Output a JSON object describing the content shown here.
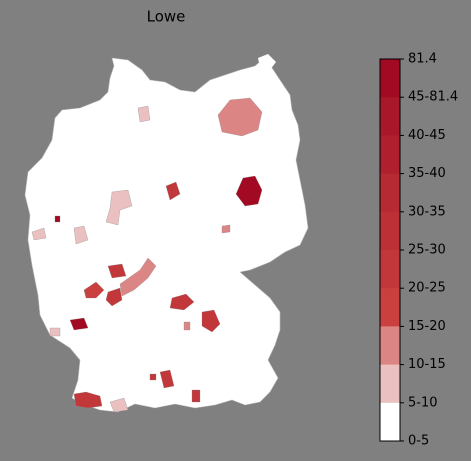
{
  "title": "Lowe",
  "legend": {
    "labels": [
      "81.4",
      "45-81.4",
      "40-45",
      "35-40",
      "30-35",
      "25-30",
      "20-25",
      "15-20",
      "10-15",
      "5-10",
      "0-5"
    ],
    "colors": [
      "#a10a22",
      "#a8172a",
      "#b01f2e",
      "#b62a33",
      "#bd3136",
      "#c2373a",
      "#c9403f",
      "#dc8585",
      "#ebc0c0",
      "#ffffff"
    ]
  }
}
